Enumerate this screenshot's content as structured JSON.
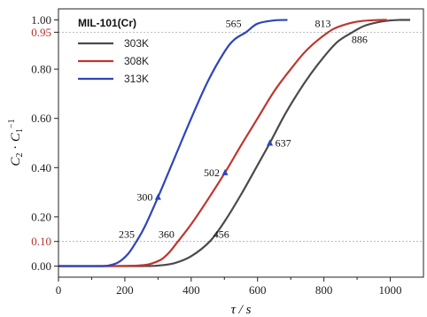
{
  "chart_data": {
    "type": "line",
    "xlabel": "τ / s",
    "ylabel_parts": [
      "C",
      "2",
      " · ",
      "C",
      "1",
      "−1"
    ],
    "xlim": [
      0,
      1100
    ],
    "ylim": [
      -0.045,
      1.045
    ],
    "xticks": [
      0,
      200,
      400,
      600,
      800,
      1000
    ],
    "yticks": [
      {
        "value": 0.0,
        "label": "0.00",
        "highlight": false
      },
      {
        "value": 0.1,
        "label": "0.10",
        "highlight": true
      },
      {
        "value": 0.2,
        "label": "0.20",
        "highlight": false
      },
      {
        "value": 0.4,
        "label": "0.40",
        "highlight": false
      },
      {
        "value": 0.6,
        "label": "0.60",
        "highlight": false
      },
      {
        "value": 0.8,
        "label": "0.80",
        "highlight": false
      },
      {
        "value": 0.95,
        "label": "0.95",
        "highlight": true
      },
      {
        "value": 1.0,
        "label": "1.00",
        "highlight": false
      }
    ],
    "reference_lines": [
      0.1,
      0.95
    ],
    "legend": {
      "title": "MIL-101(Cr)",
      "placement": "top-left"
    },
    "series": [
      {
        "name": "303K",
        "color": "#4a4a4a",
        "x": [
          0,
          150,
          250,
          300,
          350,
          400,
          456,
          500,
          550,
          600,
          637,
          680,
          720,
          760,
          800,
          840,
          886,
          920,
          960,
          1000,
          1030,
          1060
        ],
        "y": [
          0.0,
          0.0,
          0.0,
          0.002,
          0.012,
          0.04,
          0.1,
          0.18,
          0.29,
          0.41,
          0.5,
          0.61,
          0.7,
          0.78,
          0.85,
          0.91,
          0.95,
          0.975,
          0.99,
          0.998,
          1.0,
          1.0
        ]
      },
      {
        "name": "308K",
        "color": "#c0352e",
        "x": [
          0,
          150,
          250,
          300,
          330,
          360,
          400,
          450,
          502,
          550,
          600,
          650,
          700,
          750,
          813,
          850,
          900,
          950,
          990
        ],
        "y": [
          0.0,
          0.0,
          0.003,
          0.02,
          0.05,
          0.1,
          0.17,
          0.27,
          0.38,
          0.49,
          0.6,
          0.71,
          0.8,
          0.88,
          0.95,
          0.975,
          0.993,
          0.999,
          1.0
        ]
      },
      {
        "name": "313K",
        "color": "#2f45b8",
        "x": [
          0,
          120,
          150,
          180,
          210,
          235,
          260,
          300,
          350,
          400,
          450,
          500,
          530,
          565,
          600,
          650,
          690
        ],
        "y": [
          0.0,
          0.0,
          0.002,
          0.015,
          0.05,
          0.1,
          0.16,
          0.28,
          0.44,
          0.6,
          0.75,
          0.87,
          0.92,
          0.95,
          0.985,
          0.998,
          1.0
        ]
      }
    ],
    "markers": [
      {
        "series": "313K",
        "x": 300,
        "y": 0.28,
        "label": "300"
      },
      {
        "series": "308K",
        "x": 502,
        "y": 0.38,
        "label": "502"
      },
      {
        "series": "303K",
        "x": 637,
        "y": 0.5,
        "label": "637"
      }
    ],
    "annotations": [
      {
        "label": "235",
        "x": 235,
        "y": 0.1
      },
      {
        "label": "360",
        "x": 360,
        "y": 0.1
      },
      {
        "label": "456",
        "x": 456,
        "y": 0.1
      },
      {
        "label": "565",
        "x": 565,
        "y": 0.95
      },
      {
        "label": "813",
        "x": 813,
        "y": 0.95
      },
      {
        "label": "886",
        "x": 886,
        "y": 0.95
      }
    ]
  }
}
